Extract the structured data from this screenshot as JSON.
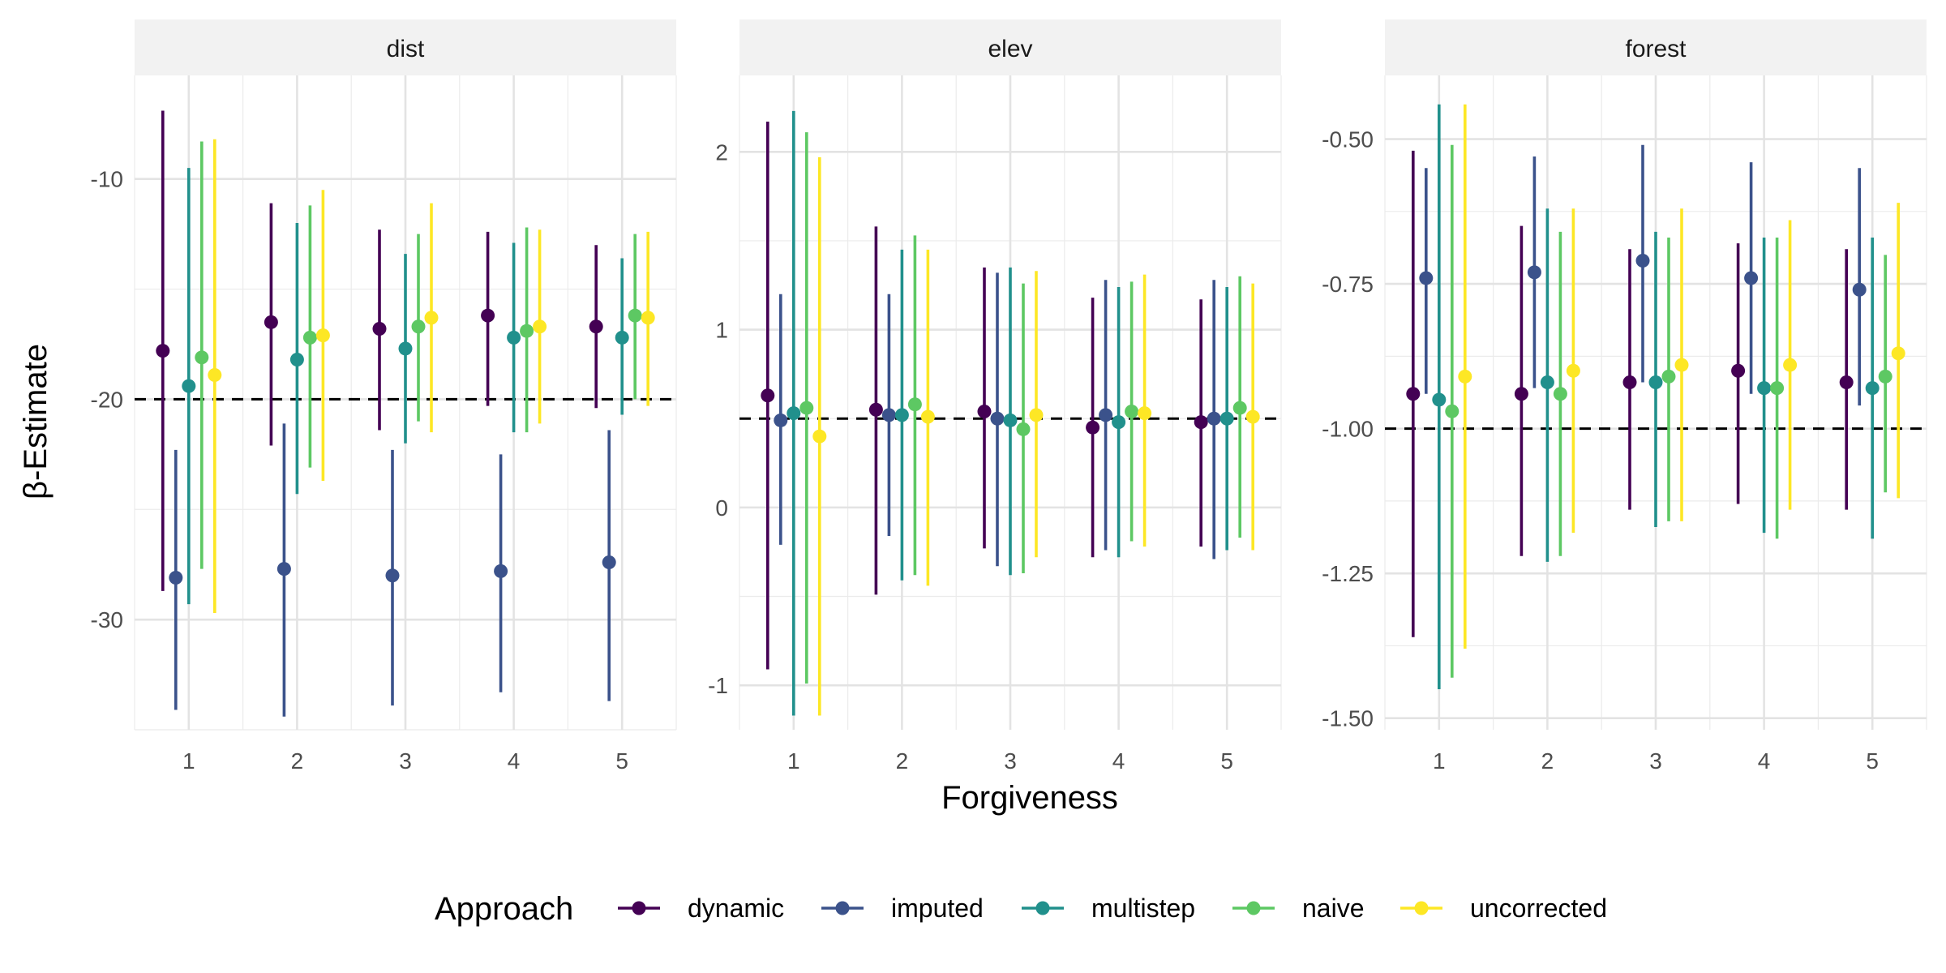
{
  "chart_data": {
    "type": "scatter",
    "subtype": "pointrange-facets",
    "xlabel": "Forgiveness",
    "ylabel": "β-Estimate",
    "x_categories": [
      "1",
      "2",
      "3",
      "4",
      "5"
    ],
    "legend": {
      "title": "Approach",
      "placement": "bottom",
      "entries": [
        "dynamic",
        "imputed",
        "multistep",
        "naive",
        "uncorrected"
      ]
    },
    "colors": {
      "dynamic": "#440154",
      "imputed": "#3b528b",
      "multistep": "#21908c",
      "naive": "#5dc863",
      "uncorrected": "#fde725"
    },
    "grid": true,
    "facets": [
      {
        "name": "dist",
        "ylim": [
          -35.0,
          -5.3
        ],
        "yticks": [
          -30,
          -20,
          -10
        ],
        "reference_line": -20,
        "series": [
          {
            "name": "dynamic",
            "est": [
              -17.8,
              -16.5,
              -16.8,
              -16.2,
              -16.7
            ],
            "lo": [
              -28.7,
              -22.1,
              -21.4,
              -20.3,
              -20.4
            ],
            "hi": [
              -6.9,
              -11.1,
              -12.3,
              -12.4,
              -13.0
            ]
          },
          {
            "name": "imputed",
            "est": [
              -28.1,
              -27.7,
              -28.0,
              -27.8,
              -27.4
            ],
            "lo": [
              -34.1,
              -34.4,
              -33.9,
              -33.3,
              -33.7
            ],
            "hi": [
              -22.3,
              -21.1,
              -22.3,
              -22.5,
              -21.4
            ]
          },
          {
            "name": "multistep",
            "est": [
              -19.4,
              -18.2,
              -17.7,
              -17.2,
              -17.2
            ],
            "lo": [
              -29.3,
              -24.3,
              -22.0,
              -21.5,
              -20.7
            ],
            "hi": [
              -9.5,
              -12.0,
              -13.4,
              -12.9,
              -13.6
            ]
          },
          {
            "name": "naive",
            "est": [
              -18.1,
              -17.2,
              -16.7,
              -16.9,
              -16.2
            ],
            "lo": [
              -27.7,
              -23.1,
              -21.0,
              -21.5,
              -20.0
            ],
            "hi": [
              -8.3,
              -11.2,
              -12.5,
              -12.2,
              -12.5
            ]
          },
          {
            "name": "uncorrected",
            "est": [
              -18.9,
              -17.1,
              -16.3,
              -16.7,
              -16.3
            ],
            "lo": [
              -29.7,
              -23.7,
              -21.5,
              -21.1,
              -20.3
            ],
            "hi": [
              -8.2,
              -10.5,
              -11.1,
              -12.3,
              -12.4
            ]
          }
        ]
      },
      {
        "name": "elev",
        "ylim": [
          -1.25,
          2.43
        ],
        "yticks": [
          -1,
          0,
          1,
          2
        ],
        "reference_line": 0.5,
        "series": [
          {
            "name": "dynamic",
            "est": [
              0.63,
              0.55,
              0.54,
              0.45,
              0.48
            ],
            "lo": [
              -0.91,
              -0.49,
              -0.23,
              -0.28,
              -0.22
            ],
            "hi": [
              2.17,
              1.58,
              1.35,
              1.18,
              1.17
            ]
          },
          {
            "name": "imputed",
            "est": [
              0.49,
              0.52,
              0.5,
              0.52,
              0.5
            ],
            "lo": [
              -0.21,
              -0.16,
              -0.33,
              -0.24,
              -0.29
            ],
            "hi": [
              1.2,
              1.2,
              1.32,
              1.28,
              1.28
            ]
          },
          {
            "name": "multistep",
            "est": [
              0.53,
              0.52,
              0.49,
              0.48,
              0.5
            ],
            "lo": [
              -1.17,
              -0.41,
              -0.38,
              -0.28,
              -0.24
            ],
            "hi": [
              2.23,
              1.45,
              1.35,
              1.24,
              1.24
            ]
          },
          {
            "name": "naive",
            "est": [
              0.56,
              0.58,
              0.44,
              0.54,
              0.56
            ],
            "lo": [
              -0.99,
              -0.38,
              -0.37,
              -0.19,
              -0.17
            ],
            "hi": [
              2.11,
              1.53,
              1.26,
              1.27,
              1.3
            ]
          },
          {
            "name": "uncorrected",
            "est": [
              0.4,
              0.51,
              0.52,
              0.53,
              0.51
            ],
            "lo": [
              -1.17,
              -0.44,
              -0.28,
              -0.22,
              -0.24
            ],
            "hi": [
              1.97,
              1.45,
              1.33,
              1.31,
              1.26
            ]
          }
        ]
      },
      {
        "name": "forest",
        "ylim": [
          -1.52,
          -0.39
        ],
        "yticks": [
          -1.5,
          -1.25,
          -1.0,
          -0.75,
          -0.5
        ],
        "ytick_labels": [
          "-1.50",
          "-1.25",
          "-1.00",
          "-0.75",
          "-0.50"
        ],
        "reference_line": -1.0,
        "series": [
          {
            "name": "dynamic",
            "est": [
              -0.94,
              -0.94,
              -0.92,
              -0.9,
              -0.92
            ],
            "lo": [
              -1.36,
              -1.22,
              -1.14,
              -1.13,
              -1.14
            ],
            "hi": [
              -0.52,
              -0.65,
              -0.69,
              -0.68,
              -0.69
            ]
          },
          {
            "name": "imputed",
            "est": [
              -0.74,
              -0.73,
              -0.71,
              -0.74,
              -0.76
            ],
            "lo": [
              -0.94,
              -0.93,
              -0.92,
              -0.94,
              -0.96
            ],
            "hi": [
              -0.55,
              -0.53,
              -0.51,
              -0.54,
              -0.55
            ]
          },
          {
            "name": "multistep",
            "est": [
              -0.95,
              -0.92,
              -0.92,
              -0.93,
              -0.93
            ],
            "lo": [
              -1.45,
              -1.23,
              -1.17,
              -1.18,
              -1.19
            ],
            "hi": [
              -0.44,
              -0.62,
              -0.66,
              -0.67,
              -0.67
            ]
          },
          {
            "name": "naive",
            "est": [
              -0.97,
              -0.94,
              -0.91,
              -0.93,
              -0.91
            ],
            "lo": [
              -1.43,
              -1.22,
              -1.16,
              -1.19,
              -1.11
            ],
            "hi": [
              -0.51,
              -0.66,
              -0.67,
              -0.67,
              -0.7
            ]
          },
          {
            "name": "uncorrected",
            "est": [
              -0.91,
              -0.9,
              -0.89,
              -0.89,
              -0.87
            ],
            "lo": [
              -1.38,
              -1.18,
              -1.16,
              -1.14,
              -1.12
            ],
            "hi": [
              -0.44,
              -0.62,
              -0.62,
              -0.64,
              -0.61
            ]
          }
        ]
      }
    ]
  }
}
